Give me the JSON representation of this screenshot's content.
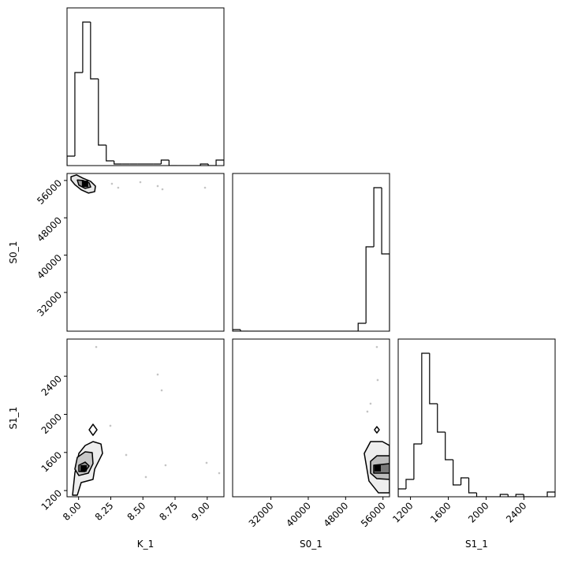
{
  "chart_data": [
    {
      "type": "histogram",
      "bins": [
        7.91,
        7.971,
        8.032,
        8.093,
        8.154,
        8.215,
        8.276,
        8.337,
        8.398,
        8.459,
        8.52,
        8.581,
        8.642,
        8.703,
        8.764,
        8.825,
        8.886,
        8.947,
        9.008,
        9.069,
        9.13
      ],
      "values": [
        12,
        118,
        182,
        110,
        26,
        6,
        2,
        2,
        2,
        2,
        2,
        2,
        7,
        0,
        0,
        0,
        0,
        2,
        0,
        7
      ],
      "color": "#000000",
      "xlim": [
        7.91,
        9.13
      ],
      "ylim": [
        0,
        200
      ]
    },
    {
      "type": "contour",
      "ylabel": "S0_1",
      "xlim": [
        7.91,
        9.13
      ],
      "ylim": [
        23700,
        57500
      ],
      "yticks": [
        32000,
        40000,
        48000,
        56000
      ],
      "contours": [
        {
          "x": [
            7.941,
            7.984,
            8.033,
            8.094,
            8.131,
            8.125,
            8.076,
            8.02,
            7.971,
            7.941
          ],
          "y": [
            56800,
            57200,
            56500,
            55800,
            54800,
            53600,
            53300,
            54000,
            55100,
            56100
          ],
          "color": "#e6e6e6"
        },
        {
          "x": [
            7.99,
            8.033,
            8.082,
            8.094,
            8.051,
            8.002
          ],
          "y": [
            56100,
            56000,
            55500,
            54600,
            54300,
            55000
          ],
          "color": "#9a9a9a"
        }
      ],
      "core": {
        "x": 8.05,
        "y": 55300
      },
      "points": {
        "x": [
          8.308,
          8.615,
          8.652,
          8.983,
          8.48,
          8.259
        ],
        "y": [
          54460,
          54800,
          54120,
          54460,
          55640,
          55300
        ]
      }
    },
    {
      "type": "histogram",
      "bins": [
        23800,
        25480,
        27160,
        28840,
        30520,
        32200,
        33880,
        35560,
        37240,
        38920,
        40600,
        42280,
        43960,
        45640,
        47320,
        49000,
        50680,
        52360,
        54040,
        55720,
        57400
      ],
      "values": [
        2,
        0,
        0,
        0,
        0,
        0,
        0,
        0,
        0,
        0,
        0,
        0,
        0,
        0,
        0,
        0,
        10,
        107,
        182,
        98
      ],
      "color": "#000000",
      "xlim": [
        23800,
        57400
      ],
      "ylim": [
        0,
        200
      ]
    },
    {
      "type": "contour",
      "xlabel": "K_1",
      "ylabel": "S1_1",
      "xlim": [
        7.91,
        9.13
      ],
      "ylim": [
        1135,
        2790
      ],
      "xticks": [
        {
          "value": 8,
          "label": "8.00"
        },
        {
          "value": 8.25,
          "label": "8.25"
        },
        {
          "value": 8.5,
          "label": "8.50"
        },
        {
          "value": 8.75,
          "label": "8.75"
        },
        {
          "value": 9,
          "label": "9.00"
        }
      ],
      "yticks": [
        1200,
        1600,
        2000,
        2400
      ],
      "contours": [
        {
          "x": [
            7.953,
            7.971,
            8.002,
            8.051,
            8.112,
            8.174,
            8.186,
            8.125,
            8.112,
            8.02,
            7.99
          ],
          "y": [
            1152,
            1383,
            1590,
            1673,
            1714,
            1689,
            1590,
            1425,
            1317,
            1284,
            1152
          ],
          "color": "#eeeeee"
        },
        {
          "x": [
            7.971,
            7.99,
            8.051,
            8.106,
            8.112,
            8.076,
            8.002
          ],
          "y": [
            1425,
            1549,
            1607,
            1598,
            1483,
            1383,
            1358
          ],
          "color": "#c8c8c8"
        },
        {
          "x": [
            8.002,
            8.051,
            8.082,
            8.051,
            8.002
          ],
          "y": [
            1466,
            1499,
            1458,
            1400,
            1400
          ],
          "color": "#8a8a8a"
        },
        {
          "x": [
            8.082,
            8.112,
            8.143,
            8.112
          ],
          "y": [
            1838,
            1896,
            1838,
            1780
          ],
          "color": "#ffffff"
        }
      ],
      "core": {
        "x": 8.039,
        "y": 1433
      },
      "points": {
        "x": [
          8.137,
          8.247,
          8.615,
          8.646,
          8.995,
          8.37,
          8.523,
          8.676,
          9.093
        ],
        "y": [
          2707,
          1880,
          2418,
          2252,
          1491,
          1574,
          1342,
          1466,
          1383
        ]
      }
    },
    {
      "type": "contour",
      "xlabel": "S0_1",
      "xlim": [
        23800,
        57400
      ],
      "ylim": [
        1135,
        2790
      ],
      "xticks": [
        32000,
        40000,
        48000,
        56000
      ],
      "contours": [
        {
          "x": [
            51990,
            53340,
            55870,
            57390,
            57390,
            55030,
            53000
          ],
          "y": [
            1590,
            1714,
            1714,
            1673,
            1176,
            1176,
            1300
          ],
          "color": "#eeeeee"
        },
        {
          "x": [
            53340,
            54690,
            57390,
            57390,
            54690,
            53340
          ],
          "y": [
            1507,
            1565,
            1565,
            1317,
            1325,
            1383
          ],
          "color": "#bdbdbd"
        },
        {
          "x": [
            54020,
            57390,
            57390,
            54020
          ],
          "y": [
            1466,
            1483,
            1383,
            1383
          ],
          "color": "#7a7a7a"
        },
        {
          "x": [
            54180,
            54690,
            55200,
            54690
          ],
          "y": [
            1838,
            1871,
            1838,
            1805
          ],
          "color": "#ffffff"
        }
      ],
      "core": {
        "x": 54860,
        "y": 1433
      },
      "points": {
        "x": [
          54690,
          52660,
          54860,
          53340
        ],
        "y": [
          2707,
          2029,
          2360,
          2112
        ]
      }
    },
    {
      "type": "histogram",
      "xlabel": "S1_1",
      "bins": [
        1070,
        1153,
        1236,
        1319,
        1402,
        1485,
        1568,
        1651,
        1734,
        1817,
        1900,
        1983,
        2066,
        2149,
        2232,
        2315,
        2398,
        2481,
        2564,
        2647,
        2730
      ],
      "values": [
        10,
        22,
        67,
        182,
        118,
        82,
        47,
        15,
        24,
        5,
        0,
        0,
        0,
        3,
        0,
        3,
        0,
        0,
        0,
        6
      ],
      "color": "#000000",
      "xlim": [
        1070,
        2730
      ],
      "ylim": [
        0,
        200
      ],
      "xticks": [
        1200,
        1600,
        2000,
        2400
      ]
    }
  ]
}
